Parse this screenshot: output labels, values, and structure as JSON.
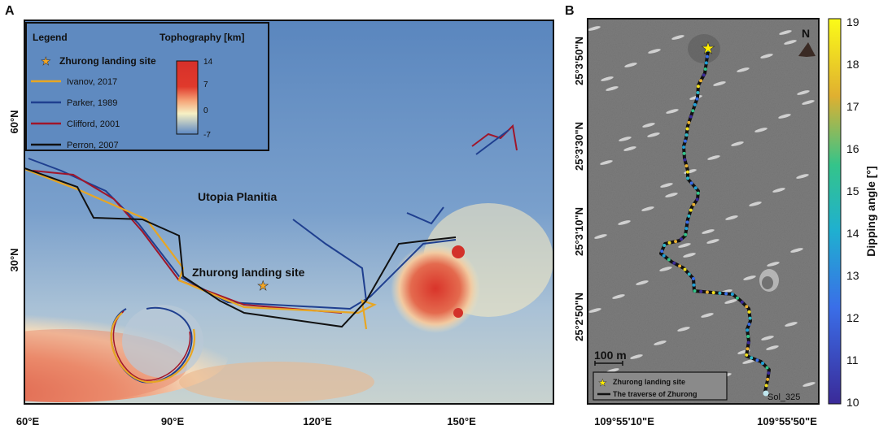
{
  "panel_a": {
    "label": "A",
    "legend": {
      "title": "Legend",
      "landing_site": "Zhurong landing site",
      "items": [
        {
          "label": "Ivanov, 2017",
          "color": "#e8a623"
        },
        {
          "label": "Parker, 1989",
          "color": "#1f3f8f"
        },
        {
          "label": "Clifford, 2001",
          "color": "#a0162a"
        },
        {
          "label": "Perron, 2007",
          "color": "#111111"
        }
      ],
      "colorbar_title": "Tophography [km]",
      "colorbar_ticks": [
        "14",
        "7",
        "0",
        "-7"
      ]
    },
    "lat_ticks": [
      "60°N",
      "30°N"
    ],
    "lon_ticks": [
      "60°E",
      "90°E",
      "120°E",
      "150°E"
    ],
    "region_label": "Utopia Planitia",
    "site_label": "Zhurong landing site",
    "star_color": "#f5a623"
  },
  "panel_b": {
    "label": "B",
    "north_label": "N",
    "lat_ticks": [
      "25°3'50\"N",
      "25°3'30\"N",
      "25°3'10\"N",
      "25°2'50\"N"
    ],
    "lon_ticks": [
      "109°55'10\"E",
      "109°55'50\"E"
    ],
    "scale_bar": "100 m",
    "end_label": "Sol_325",
    "legend": {
      "landing_site": "Zhurong landing site",
      "traverse": "The traverse of Zhurong"
    },
    "colorbar_title": "Dipping angle [°]",
    "colorbar_ticks": [
      "19",
      "18",
      "17",
      "16",
      "15",
      "14",
      "13",
      "12",
      "11",
      "10"
    ],
    "colorbar_range": [
      10,
      19
    ],
    "star_color": "#ffee00"
  }
}
